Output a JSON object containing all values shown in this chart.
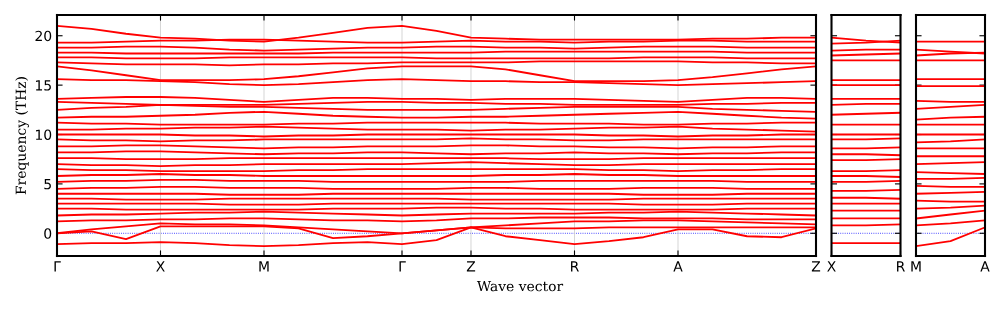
{
  "chart_data": [
    {
      "type": "line",
      "ylabel": "Frequency (THz)",
      "xlabel": "Wave vector",
      "grid": "x",
      "line_style": "solid",
      "marker": "none",
      "categories": [
        "Γ",
        null,
        null,
        "X",
        null,
        null,
        "M",
        null,
        null,
        null,
        "Γ",
        null,
        "Z",
        null,
        null,
        "R",
        null,
        null,
        "A",
        null,
        null,
        null,
        "Z"
      ],
      "ylim": [
        -2.3,
        22.1
      ],
      "yticks": [
        0,
        5,
        10,
        15,
        20
      ],
      "ref_lines": [
        {
          "axis": "y",
          "value": 0,
          "label": null,
          "color": "#0000ff",
          "line_style": "dotted"
        }
      ],
      "series": [
        {
          "color": "#ff0000",
          "values": [
            21.0,
            20.7,
            20.2,
            19.8,
            19.7,
            19.5,
            19.4,
            19.8,
            20.3,
            20.8,
            21.0,
            20.5,
            19.8,
            19.7,
            19.6,
            19.6,
            19.6,
            19.6,
            19.6,
            19.7,
            19.7,
            19.8,
            19.8
          ]
        },
        {
          "color": "#ff0000",
          "values": [
            19.3,
            19.3,
            19.4,
            19.5,
            19.5,
            19.6,
            19.6,
            19.5,
            19.4,
            19.3,
            19.3,
            19.4,
            19.5,
            19.4,
            19.4,
            19.3,
            19.4,
            19.4,
            19.5,
            19.5,
            19.4,
            19.4,
            19.4
          ]
        },
        {
          "color": "#ff0000",
          "values": [
            18.8,
            18.8,
            18.9,
            18.9,
            18.8,
            18.6,
            18.5,
            18.6,
            18.7,
            18.8,
            18.8,
            18.9,
            18.9,
            18.8,
            18.8,
            18.7,
            18.8,
            18.9,
            18.9,
            18.9,
            18.8,
            18.8,
            18.8
          ]
        },
        {
          "color": "#ff0000",
          "values": [
            18.3,
            18.3,
            18.2,
            18.2,
            18.2,
            18.2,
            18.2,
            18.2,
            18.3,
            18.3,
            18.3,
            18.3,
            18.3,
            18.4,
            18.4,
            18.4,
            18.4,
            18.4,
            18.4,
            18.4,
            18.3,
            18.3,
            18.3
          ]
        },
        {
          "color": "#ff0000",
          "values": [
            17.8,
            17.8,
            17.7,
            17.7,
            17.7,
            17.8,
            17.8,
            17.8,
            17.8,
            17.8,
            17.8,
            17.7,
            17.7,
            17.7,
            17.7,
            17.7,
            17.7,
            17.8,
            17.8,
            17.8,
            17.7,
            17.7,
            17.7
          ]
        },
        {
          "color": "#ff0000",
          "values": [
            17.3,
            17.2,
            17.1,
            17.1,
            17.1,
            17.0,
            17.1,
            17.1,
            17.2,
            17.2,
            17.3,
            17.3,
            17.3,
            17.3,
            17.4,
            17.4,
            17.4,
            17.4,
            17.4,
            17.3,
            17.3,
            17.2,
            17.2
          ]
        },
        {
          "color": "#ff0000",
          "values": [
            16.9,
            16.5,
            16.0,
            15.5,
            15.5,
            15.5,
            15.6,
            15.9,
            16.3,
            16.7,
            16.9,
            16.9,
            16.9,
            16.6,
            16.0,
            15.4,
            15.4,
            15.4,
            15.5,
            15.8,
            16.2,
            16.6,
            16.9
          ]
        },
        {
          "color": "#ff0000",
          "values": [
            15.6,
            15.5,
            15.5,
            15.4,
            15.3,
            15.1,
            15.0,
            15.1,
            15.3,
            15.5,
            15.6,
            15.5,
            15.4,
            15.4,
            15.3,
            15.3,
            15.2,
            15.1,
            15.0,
            15.1,
            15.2,
            15.3,
            15.4
          ]
        },
        {
          "color": "#ff0000",
          "values": [
            13.6,
            13.7,
            13.8,
            13.8,
            13.7,
            13.5,
            13.3,
            13.5,
            13.7,
            13.7,
            13.6,
            13.6,
            13.5,
            13.6,
            13.6,
            13.6,
            13.5,
            13.4,
            13.3,
            13.5,
            13.7,
            13.7,
            13.6
          ]
        },
        {
          "color": "#ff0000",
          "values": [
            13.3,
            13.2,
            13.1,
            13.0,
            13.0,
            13.0,
            13.0,
            13.1,
            13.2,
            13.3,
            13.3,
            13.2,
            13.2,
            13.1,
            13.1,
            13.0,
            13.0,
            13.0,
            13.0,
            13.1,
            13.1,
            13.2,
            13.2
          ]
        },
        {
          "color": "#ff0000",
          "values": [
            12.5,
            12.7,
            12.8,
            13.0,
            12.9,
            12.8,
            12.8,
            12.7,
            12.6,
            12.5,
            12.5,
            12.5,
            12.5,
            12.6,
            12.7,
            12.8,
            12.8,
            12.8,
            12.8,
            12.6,
            12.5,
            12.4,
            12.3
          ]
        },
        {
          "color": "#ff0000",
          "values": [
            11.7,
            11.8,
            11.8,
            11.9,
            12.0,
            12.2,
            12.3,
            12.1,
            11.9,
            11.8,
            11.7,
            11.7,
            11.8,
            11.8,
            11.9,
            12.0,
            12.1,
            12.2,
            12.3,
            12.1,
            11.9,
            11.7,
            11.6
          ]
        },
        {
          "color": "#ff0000",
          "values": [
            11.2,
            11.1,
            11.1,
            11.0,
            11.0,
            11.0,
            11.0,
            11.1,
            11.1,
            11.2,
            11.2,
            11.2,
            11.2,
            11.2,
            11.1,
            11.1,
            11.1,
            11.0,
            11.0,
            11.1,
            11.1,
            11.2,
            11.2
          ]
        },
        {
          "color": "#ff0000",
          "values": [
            10.5,
            10.5,
            10.6,
            10.6,
            10.7,
            10.7,
            10.8,
            10.7,
            10.6,
            10.5,
            10.5,
            10.5,
            10.4,
            10.5,
            10.5,
            10.6,
            10.7,
            10.7,
            10.8,
            10.6,
            10.5,
            10.4,
            10.3
          ]
        },
        {
          "color": "#ff0000",
          "values": [
            10.0,
            10.0,
            10.0,
            10.0,
            9.9,
            9.9,
            9.8,
            9.9,
            9.9,
            10.0,
            10.0,
            10.0,
            10.0,
            10.0,
            10.0,
            10.0,
            9.9,
            9.9,
            9.8,
            9.9,
            9.9,
            10.0,
            10.0
          ]
        },
        {
          "color": "#ff0000",
          "values": [
            9.5,
            9.4,
            9.4,
            9.3,
            9.4,
            9.4,
            9.5,
            9.5,
            9.5,
            9.5,
            9.5,
            9.5,
            9.6,
            9.5,
            9.5,
            9.4,
            9.4,
            9.5,
            9.5,
            9.5,
            9.5,
            9.5,
            9.5
          ]
        },
        {
          "color": "#ff0000",
          "values": [
            8.8,
            8.8,
            8.9,
            8.9,
            8.8,
            8.7,
            8.6,
            8.7,
            8.7,
            8.8,
            8.8,
            8.8,
            8.9,
            8.9,
            8.8,
            8.8,
            8.7,
            8.7,
            8.6,
            8.7,
            8.7,
            8.8,
            8.8
          ]
        },
        {
          "color": "#ff0000",
          "values": [
            8.2,
            8.2,
            8.3,
            8.3,
            8.2,
            8.1,
            8.0,
            8.1,
            8.1,
            8.2,
            8.2,
            8.1,
            8.0,
            8.1,
            8.1,
            8.2,
            8.1,
            8.1,
            8.0,
            8.1,
            8.1,
            8.2,
            8.2
          ]
        },
        {
          "color": "#ff0000",
          "values": [
            7.6,
            7.6,
            7.5,
            7.5,
            7.5,
            7.6,
            7.6,
            7.6,
            7.6,
            7.6,
            7.6,
            7.6,
            7.6,
            7.6,
            7.5,
            7.5,
            7.5,
            7.6,
            7.6,
            7.6,
            7.6,
            7.6,
            7.6
          ]
        },
        {
          "color": "#ff0000",
          "values": [
            7.0,
            6.9,
            6.9,
            6.8,
            6.9,
            6.9,
            7.0,
            7.0,
            7.0,
            7.0,
            7.0,
            7.1,
            7.2,
            7.1,
            7.0,
            6.9,
            6.9,
            7.0,
            7.0,
            7.0,
            7.0,
            7.0,
            7.0
          ]
        },
        {
          "color": "#ff0000",
          "values": [
            6.5,
            6.4,
            6.4,
            6.3,
            6.3,
            6.3,
            6.3,
            6.4,
            6.4,
            6.5,
            6.5,
            6.5,
            6.5,
            6.5,
            6.5,
            6.5,
            6.4,
            6.4,
            6.3,
            6.4,
            6.4,
            6.5,
            6.5
          ]
        },
        {
          "color": "#ff0000",
          "values": [
            5.8,
            5.9,
            5.9,
            6.0,
            5.9,
            5.9,
            5.8,
            5.8,
            5.8,
            5.8,
            5.8,
            5.8,
            5.8,
            5.9,
            5.9,
            6.0,
            5.9,
            5.9,
            5.8,
            5.8,
            5.8,
            5.8,
            5.8
          ]
        },
        {
          "color": "#ff0000",
          "values": [
            5.2,
            5.3,
            5.3,
            5.4,
            5.4,
            5.3,
            5.3,
            5.3,
            5.2,
            5.2,
            5.2,
            5.2,
            5.2,
            5.2,
            5.3,
            5.3,
            5.3,
            5.3,
            5.3,
            5.3,
            5.2,
            5.2,
            5.2
          ]
        },
        {
          "color": "#ff0000",
          "values": [
            4.5,
            4.6,
            4.6,
            4.7,
            4.7,
            4.6,
            4.6,
            4.6,
            4.5,
            4.5,
            4.5,
            4.5,
            4.6,
            4.6,
            4.5,
            4.5,
            4.5,
            4.6,
            4.6,
            4.6,
            4.5,
            4.5,
            4.5
          ]
        },
        {
          "color": "#ff0000",
          "values": [
            4.0,
            4.0,
            4.0,
            4.0,
            4.0,
            3.9,
            3.9,
            3.9,
            4.0,
            4.0,
            4.0,
            4.0,
            4.0,
            4.0,
            4.0,
            4.0,
            4.0,
            3.9,
            3.9,
            3.9,
            4.0,
            4.0,
            4.0
          ]
        },
        {
          "color": "#ff0000",
          "values": [
            3.5,
            3.5,
            3.4,
            3.4,
            3.4,
            3.5,
            3.5,
            3.5,
            3.5,
            3.5,
            3.5,
            3.5,
            3.4,
            3.4,
            3.4,
            3.4,
            3.4,
            3.5,
            3.5,
            3.5,
            3.5,
            3.5,
            3.5
          ]
        },
        {
          "color": "#ff0000",
          "values": [
            3.0,
            3.0,
            3.0,
            3.0,
            3.0,
            2.9,
            2.9,
            2.9,
            3.0,
            3.0,
            3.0,
            3.0,
            3.0,
            3.0,
            3.0,
            3.0,
            3.0,
            2.9,
            2.9,
            2.9,
            3.0,
            3.0,
            3.0
          ]
        },
        {
          "color": "#ff0000",
          "values": [
            2.5,
            2.5,
            2.4,
            2.4,
            2.4,
            2.4,
            2.4,
            2.4,
            2.5,
            2.5,
            2.5,
            2.6,
            2.6,
            2.5,
            2.5,
            2.4,
            2.4,
            2.4,
            2.4,
            2.4,
            2.5,
            2.5,
            2.5
          ]
        },
        {
          "color": "#ff0000",
          "values": [
            1.8,
            1.9,
            1.9,
            2.0,
            2.1,
            2.1,
            2.2,
            2.1,
            2.0,
            1.9,
            1.8,
            1.9,
            2.0,
            2.0,
            2.0,
            2.0,
            2.1,
            2.1,
            2.2,
            2.1,
            2.0,
            1.9,
            1.8
          ]
        },
        {
          "color": "#ff0000",
          "values": [
            1.2,
            1.3,
            1.3,
            1.4,
            1.4,
            1.5,
            1.5,
            1.4,
            1.3,
            1.3,
            1.2,
            1.3,
            1.5,
            1.5,
            1.6,
            1.6,
            1.6,
            1.5,
            1.5,
            1.5,
            1.4,
            1.4,
            1.4
          ]
        },
        {
          "color": "#ff0000",
          "values": [
            0.0,
            0.4,
            0.7,
            1.0,
            0.9,
            0.9,
            0.8,
            0.6,
            0.4,
            0.2,
            0.0,
            0.3,
            0.6,
            0.8,
            1.0,
            1.2,
            1.2,
            1.3,
            1.3,
            1.2,
            1.1,
            1.0,
            0.9
          ]
        },
        {
          "color": "#ff0000",
          "values": [
            -1.1,
            -1.0,
            -1.0,
            -0.9,
            -1.0,
            -1.2,
            -1.3,
            -1.2,
            -1.0,
            -0.9,
            -1.1,
            -0.7,
            0.6,
            -0.3,
            -0.7,
            -1.1,
            -0.8,
            -0.4,
            0.4,
            0.4,
            -0.3,
            -0.4,
            0.5
          ]
        },
        {
          "color": "#ff0000",
          "values": [
            0.0,
            0.2,
            -0.6,
            0.7,
            0.7,
            0.7,
            0.7,
            0.5,
            -0.5,
            -0.3,
            0.0,
            0.3,
            0.6,
            0.5,
            0.5,
            0.5,
            0.6,
            0.6,
            0.6,
            0.6,
            0.6,
            0.6,
            0.6
          ]
        }
      ]
    },
    {
      "type": "line",
      "line_style": "solid",
      "marker": "none",
      "tick_labels": "x",
      "categories": [
        "X",
        null,
        "R"
      ],
      "ylim": [
        -2.3,
        22.1
      ],
      "yticks": [
        0,
        5,
        10,
        15,
        20
      ],
      "ref_lines": [
        {
          "axis": "y",
          "value": 0,
          "label": null,
          "color": "#0000ff",
          "line_style": "dotted"
        }
      ],
      "series": [
        {
          "color": "#ff0000",
          "values": [
            19.8,
            19.5,
            19.3
          ]
        },
        {
          "color": "#ff0000",
          "values": [
            19.2,
            19.3,
            19.5
          ]
        },
        {
          "color": "#ff0000",
          "values": [
            18.5,
            18.6,
            18.6
          ]
        },
        {
          "color": "#ff0000",
          "values": [
            18.0,
            18.1,
            18.2
          ]
        },
        {
          "color": "#ff0000",
          "values": [
            17.5,
            17.5,
            17.5
          ]
        },
        {
          "color": "#ff0000",
          "values": [
            15.5,
            15.5,
            15.5
          ]
        },
        {
          "color": "#ff0000",
          "values": [
            15.0,
            15.0,
            15.0
          ]
        },
        {
          "color": "#ff0000",
          "values": [
            13.6,
            13.6,
            13.6
          ]
        },
        {
          "color": "#ff0000",
          "values": [
            13.0,
            13.1,
            13.1
          ]
        },
        {
          "color": "#ff0000",
          "values": [
            12.0,
            12.1,
            12.2
          ]
        },
        {
          "color": "#ff0000",
          "values": [
            11.0,
            11.0,
            11.0
          ]
        },
        {
          "color": "#ff0000",
          "values": [
            10.0,
            10.0,
            10.0
          ]
        },
        {
          "color": "#ff0000",
          "values": [
            9.5,
            9.5,
            9.6
          ]
        },
        {
          "color": "#ff0000",
          "values": [
            8.6,
            8.6,
            8.7
          ]
        },
        {
          "color": "#ff0000",
          "values": [
            8.0,
            8.0,
            7.9
          ]
        },
        {
          "color": "#ff0000",
          "values": [
            7.4,
            7.4,
            7.5
          ]
        },
        {
          "color": "#ff0000",
          "values": [
            6.3,
            6.3,
            6.4
          ]
        },
        {
          "color": "#ff0000",
          "values": [
            5.8,
            5.8,
            5.7
          ]
        },
        {
          "color": "#ff0000",
          "values": [
            5.2,
            5.2,
            5.3
          ]
        },
        {
          "color": "#ff0000",
          "values": [
            4.3,
            4.3,
            4.4
          ]
        },
        {
          "color": "#ff0000",
          "values": [
            3.6,
            3.6,
            3.5
          ]
        },
        {
          "color": "#ff0000",
          "values": [
            3.0,
            3.0,
            3.0
          ]
        },
        {
          "color": "#ff0000",
          "values": [
            2.3,
            2.3,
            2.3
          ]
        },
        {
          "color": "#ff0000",
          "values": [
            1.5,
            1.5,
            1.5
          ]
        },
        {
          "color": "#ff0000",
          "values": [
            0.8,
            0.8,
            0.9
          ]
        },
        {
          "color": "#ff0000",
          "values": [
            -1.0,
            -1.0,
            -1.0
          ]
        }
      ]
    },
    {
      "type": "line",
      "line_style": "solid",
      "marker": "none",
      "tick_labels": "x",
      "categories": [
        "M",
        null,
        "A"
      ],
      "ylim": [
        -2.3,
        22.1
      ],
      "yticks": [
        0,
        5,
        10,
        15,
        20
      ],
      "ref_lines": [
        {
          "axis": "y",
          "value": 0,
          "label": null,
          "color": "#0000ff",
          "line_style": "dotted"
        }
      ],
      "series": [
        {
          "color": "#ff0000",
          "values": [
            19.4,
            19.4,
            19.4
          ]
        },
        {
          "color": "#ff0000",
          "values": [
            18.6,
            18.4,
            18.2
          ]
        },
        {
          "color": "#ff0000",
          "values": [
            18.0,
            18.2,
            18.3
          ]
        },
        {
          "color": "#ff0000",
          "values": [
            17.5,
            17.5,
            17.5
          ]
        },
        {
          "color": "#ff0000",
          "values": [
            15.6,
            15.6,
            15.6
          ]
        },
        {
          "color": "#ff0000",
          "values": [
            14.9,
            14.9,
            14.9
          ]
        },
        {
          "color": "#ff0000",
          "values": [
            13.4,
            13.3,
            13.3
          ]
        },
        {
          "color": "#ff0000",
          "values": [
            12.6,
            12.8,
            13.0
          ]
        },
        {
          "color": "#ff0000",
          "values": [
            11.5,
            11.7,
            11.8
          ]
        },
        {
          "color": "#ff0000",
          "values": [
            11.0,
            11.0,
            11.0
          ]
        },
        {
          "color": "#ff0000",
          "values": [
            10.0,
            10.0,
            10.0
          ]
        },
        {
          "color": "#ff0000",
          "values": [
            9.2,
            9.3,
            9.5
          ]
        },
        {
          "color": "#ff0000",
          "values": [
            8.6,
            8.6,
            8.6
          ]
        },
        {
          "color": "#ff0000",
          "values": [
            7.8,
            7.8,
            7.8
          ]
        },
        {
          "color": "#ff0000",
          "values": [
            7.0,
            7.1,
            7.2
          ]
        },
        {
          "color": "#ff0000",
          "values": [
            6.2,
            6.1,
            6.0
          ]
        },
        {
          "color": "#ff0000",
          "values": [
            5.5,
            5.5,
            5.6
          ]
        },
        {
          "color": "#ff0000",
          "values": [
            4.8,
            4.7,
            4.7
          ]
        },
        {
          "color": "#ff0000",
          "values": [
            4.0,
            4.1,
            4.2
          ]
        },
        {
          "color": "#ff0000",
          "values": [
            3.3,
            3.2,
            3.2
          ]
        },
        {
          "color": "#ff0000",
          "values": [
            2.5,
            2.6,
            2.8
          ]
        },
        {
          "color": "#ff0000",
          "values": [
            1.5,
            1.9,
            2.3
          ]
        },
        {
          "color": "#ff0000",
          "values": [
            0.8,
            1.0,
            1.3
          ]
        },
        {
          "color": "#ff0000",
          "values": [
            -1.3,
            -0.8,
            0.6
          ]
        }
      ]
    }
  ]
}
